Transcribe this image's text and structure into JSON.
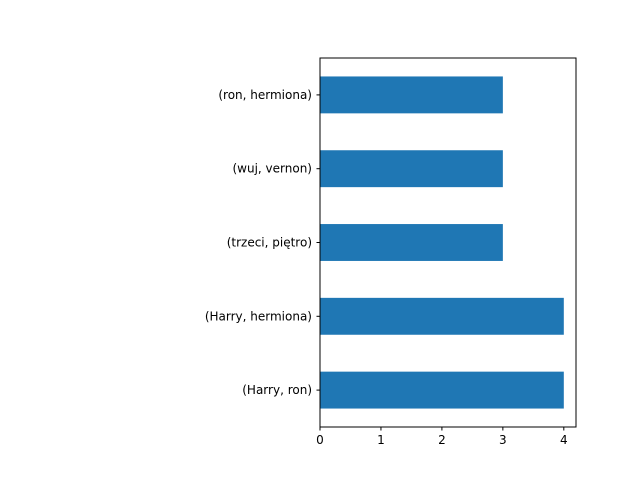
{
  "chart_data": {
    "type": "bar",
    "orientation": "horizontal",
    "title": "",
    "xlabel": "",
    "ylabel": "",
    "categories": [
      "(Harry, ron)",
      "(Harry, hermiona)",
      "(trzeci, piętro)",
      "(wuj, vernon)",
      "(ron, hermiona)"
    ],
    "values": [
      4,
      4,
      3,
      3,
      3
    ],
    "xlim": [
      0,
      4.2
    ],
    "xticks": [
      0,
      1,
      2,
      3,
      4
    ],
    "grid": false,
    "bar_color": "#1f77b4"
  }
}
